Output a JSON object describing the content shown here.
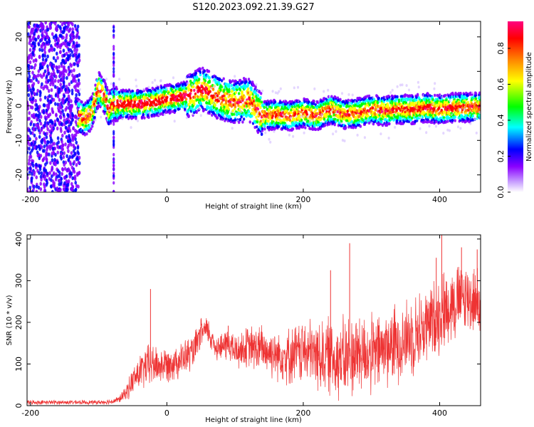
{
  "figure": {
    "title": "S120.2023.092.21.39.G27"
  },
  "chart_data": [
    {
      "type": "heatmap",
      "xlabel": "Height of straight line (km)",
      "ylabel": "Frequency (Hz)",
      "xlim": [
        -205,
        460
      ],
      "ylim": [
        -25,
        24.5
      ],
      "x_ticks": [
        -200,
        0,
        200,
        400
      ],
      "y_ticks": [
        -20,
        -10,
        0,
        10,
        20
      ],
      "ridge": {
        "x": [
          -128,
          -120,
          -110,
          -100,
          -92,
          -85,
          -80,
          -70,
          -40,
          -20,
          0,
          20,
          40,
          50,
          60,
          80,
          100,
          120,
          140,
          160,
          180,
          200,
          220,
          240,
          260,
          280,
          300,
          320,
          340,
          360,
          380,
          400,
          420,
          440,
          460
        ],
        "y": [
          -3,
          -4,
          -2,
          5,
          3,
          -1,
          0.5,
          0.5,
          0.5,
          1,
          2,
          2.5,
          3.5,
          5,
          4,
          2,
          1,
          2,
          -3,
          -2.5,
          -3,
          -2,
          -3,
          -1,
          -2.5,
          -2,
          -1,
          -1.5,
          -1,
          -1,
          -0.5,
          -1,
          -0.5,
          -0.5,
          -0.3
        ]
      },
      "colorbar": {
        "label": "Normalized spectral amplitude",
        "range": [
          0,
          0.95
        ],
        "ticks": [
          "0.0",
          "0.2",
          "0.4",
          "0.6",
          "0.8"
        ],
        "colormap": [
          "#ffffff",
          "#8a00ff",
          "#0000ff",
          "#00ffff",
          "#00ff00",
          "#ffff00",
          "#ff8000",
          "#ff0000",
          "#ff0080"
        ]
      }
    },
    {
      "type": "line",
      "xlabel": "Height of straight line (km)",
      "ylabel": "SNR (10 * v/v)",
      "xlim": [
        -205,
        460
      ],
      "ylim": [
        0,
        410
      ],
      "x_ticks": [
        -200,
        0,
        200,
        400
      ],
      "y_ticks": [
        0,
        100,
        200,
        300,
        400
      ],
      "color": "#ee3333",
      "envelope": {
        "x": [
          -205,
          -100,
          -80,
          -70,
          -60,
          -50,
          -40,
          -30,
          -20,
          -10,
          0,
          20,
          40,
          50,
          60,
          70,
          80,
          90,
          100,
          120,
          140,
          160,
          180,
          200,
          220,
          240,
          260,
          280,
          300,
          320,
          340,
          360,
          380,
          400,
          420,
          440,
          460
        ],
        "mean": [
          8,
          8,
          10,
          15,
          30,
          60,
          80,
          95,
          100,
          95,
          100,
          110,
          130,
          175,
          180,
          145,
          140,
          150,
          130,
          140,
          135,
          125,
          120,
          130,
          120,
          120,
          110,
          130,
          120,
          140,
          150,
          170,
          190,
          220,
          250,
          260,
          245
        ],
        "spread": [
          6,
          6,
          8,
          10,
          20,
          40,
          50,
          60,
          60,
          50,
          50,
          50,
          50,
          40,
          40,
          40,
          40,
          50,
          50,
          60,
          70,
          70,
          80,
          90,
          100,
          110,
          120,
          120,
          110,
          110,
          110,
          110,
          110,
          110,
          110,
          100,
          90
        ]
      },
      "spikes": [
        {
          "x": -24,
          "y": 280
        },
        {
          "x": 90,
          "y": 192
        },
        {
          "x": 268,
          "y": 390
        },
        {
          "x": 240,
          "y": 325
        },
        {
          "x": 395,
          "y": 355
        },
        {
          "x": 403,
          "y": 415
        },
        {
          "x": 432,
          "y": 380
        },
        {
          "x": 455,
          "y": 375
        }
      ]
    }
  ]
}
